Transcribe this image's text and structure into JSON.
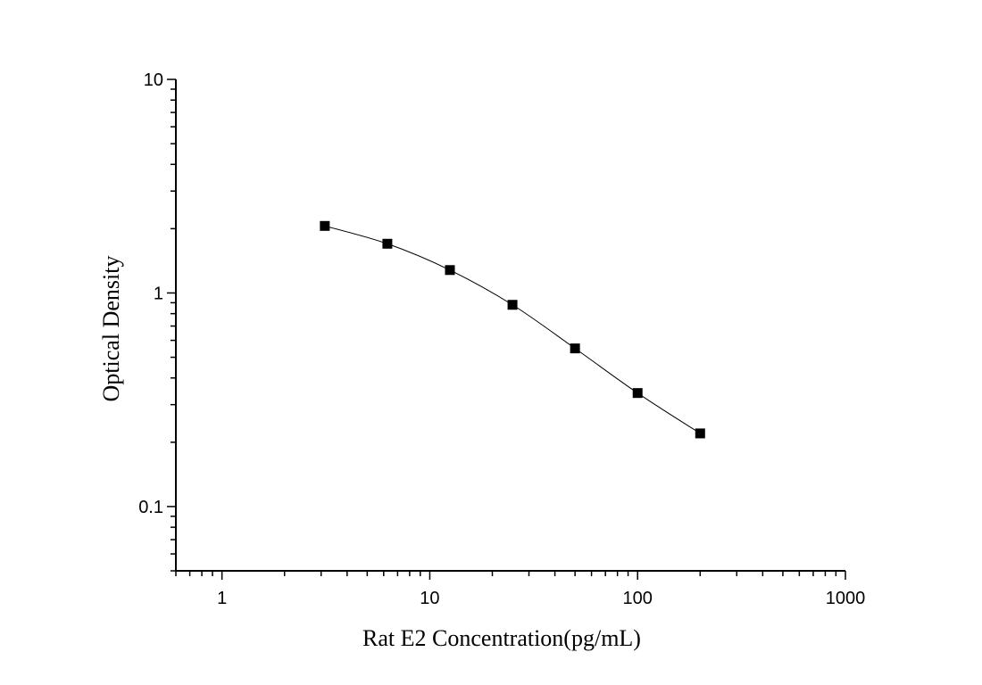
{
  "chart_data": {
    "type": "line",
    "title": "",
    "xlabel": "Rat E2 Concentration(pg/mL)",
    "ylabel": "Optical Density",
    "xscale": "log",
    "yscale": "log",
    "xlim": [
      0.6,
      1000
    ],
    "ylim": [
      0.05,
      10
    ],
    "x_tick_labels": [
      "1",
      "10",
      "100",
      "1000"
    ],
    "y_tick_labels": [
      "0.1",
      "1",
      "10"
    ],
    "grid": false,
    "legend": "none",
    "marker": "square",
    "series": [
      {
        "x": [
          3.125,
          6.25,
          12.5,
          25,
          50,
          100,
          200
        ],
        "y": [
          2.06,
          1.7,
          1.28,
          0.88,
          0.55,
          0.34,
          0.22
        ]
      }
    ],
    "colors": {
      "line": "#000000",
      "marker": "#000000"
    }
  }
}
